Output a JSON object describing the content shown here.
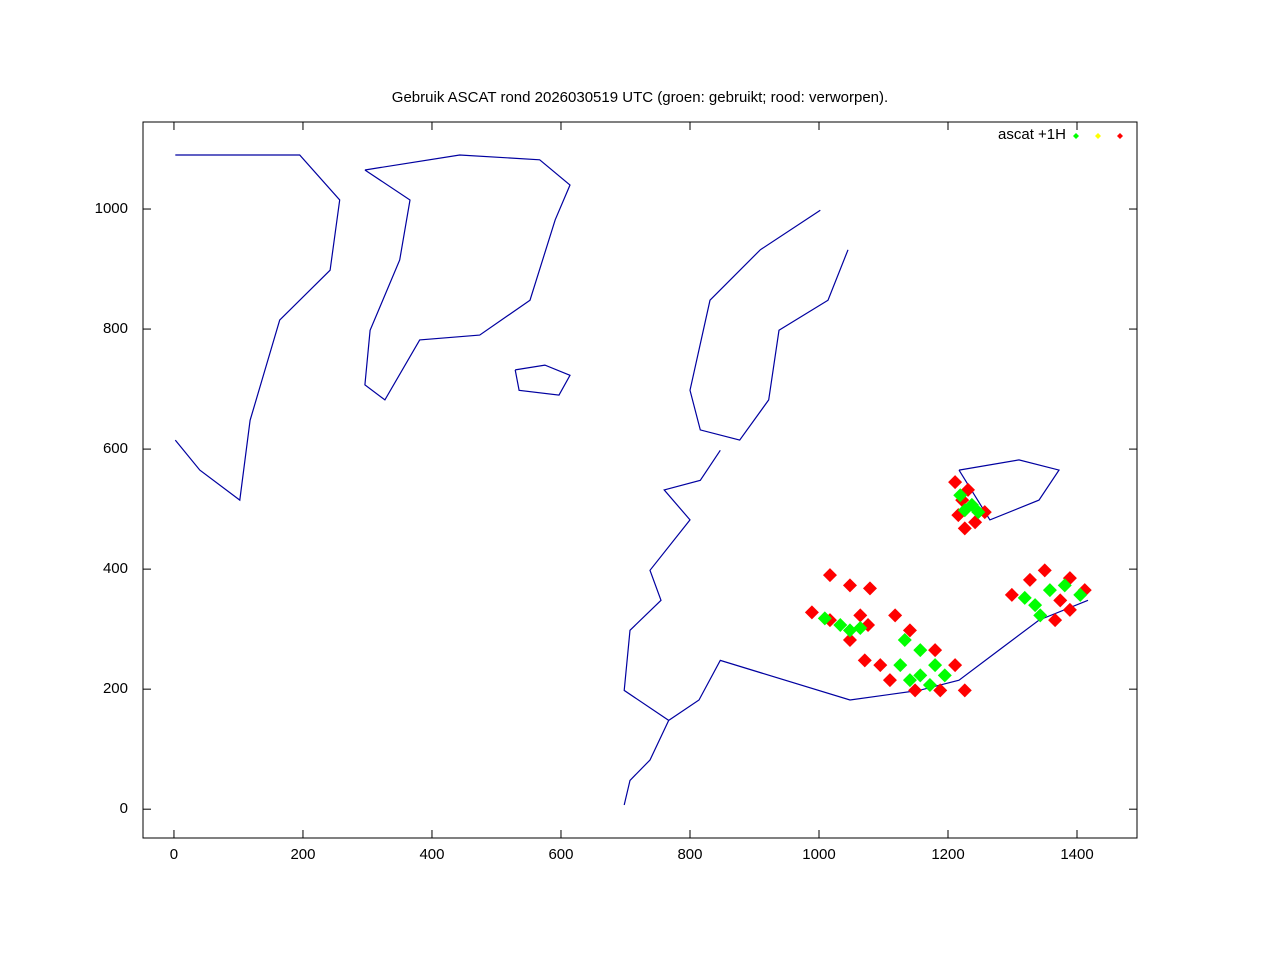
{
  "chart_data": {
    "type": "scatter",
    "title": "Gebruik ASCAT rond 2026030519 UTC (groen: gebruikt; rood: verworpen).",
    "xlim": [
      -48,
      1493
    ],
    "ylim": [
      -48,
      1145
    ],
    "xticks": [
      0,
      200,
      400,
      600,
      800,
      1000,
      1200,
      1400
    ],
    "yticks": [
      0,
      200,
      400,
      600,
      800,
      1000
    ],
    "legend": {
      "label": "ascat +1H",
      "colors": [
        "#00ff00",
        "#ffff00",
        "#ff0000"
      ]
    },
    "coastline": {
      "color": "#0000a0",
      "x": [
        296,
        443,
        567,
        614,
        591,
        552,
        474,
        381,
        327,
        296,
        304,
        350,
        366,
        296,
        null,
        529,
        575,
        614,
        597,
        535,
        529,
        null,
        1002,
        909,
        831,
        800,
        816,
        877,
        922,
        938,
        1014,
        1045,
        null,
        847,
        816,
        760,
        800,
        738,
        755,
        707,
        698,
        767,
        814,
        847,
        1048,
        1155,
        1217,
        1279,
        1341,
        1417,
        null,
        767,
        738,
        707,
        698,
        null,
        1217,
        1310,
        1372,
        1341,
        1265,
        1217,
        null,
        2,
        195,
        257,
        242,
        164,
        118,
        102,
        40,
        2
      ],
      "y": [
        1065,
        1090,
        1082,
        1040,
        982,
        848,
        790,
        782,
        682,
        707,
        798,
        915,
        1015,
        1065,
        null,
        732,
        740,
        723,
        690,
        698,
        732,
        null,
        998,
        932,
        848,
        698,
        632,
        615,
        682,
        798,
        848,
        932,
        null,
        598,
        548,
        532,
        482,
        398,
        348,
        298,
        198,
        148,
        182,
        248,
        182,
        198,
        215,
        265,
        315,
        348,
        null,
        148,
        82,
        48,
        7,
        null,
        565,
        582,
        565,
        515,
        482,
        565,
        null,
        1090,
        1090,
        1015,
        898,
        815,
        648,
        515,
        565,
        615
      ]
    },
    "points": [
      {
        "color": "#ff0000",
        "x": [
          1211,
          1222,
          1216,
          1226,
          1242,
          1257,
          1231,
          989,
          1017,
          1048,
          1076,
          1064,
          1118,
          1141,
          1180,
          1211,
          1226,
          1188,
          1149,
          1110,
          1071,
          1095,
          1017,
          1048,
          1079,
          1299,
          1327,
          1350,
          1374,
          1366,
          1389,
          1412,
          1389
        ],
        "y": [
          545,
          515,
          490,
          468,
          478,
          495,
          532,
          328,
          315,
          282,
          307,
          323,
          323,
          298,
          265,
          240,
          198,
          198,
          198,
          215,
          248,
          240,
          390,
          373,
          368,
          357,
          382,
          398,
          348,
          315,
          332,
          365,
          385
        ]
      },
      {
        "color": "#00ff00",
        "x": [
          1219,
          1237,
          1247,
          1226,
          1009,
          1033,
          1048,
          1064,
          1133,
          1157,
          1180,
          1195,
          1157,
          1126,
          1172,
          1141,
          1319,
          1335,
          1343,
          1405,
          1381,
          1358
        ],
        "y": [
          523,
          507,
          495,
          498,
          318,
          307,
          298,
          302,
          282,
          265,
          240,
          223,
          223,
          240,
          207,
          215,
          352,
          340,
          323,
          357,
          373,
          365
        ]
      }
    ]
  }
}
